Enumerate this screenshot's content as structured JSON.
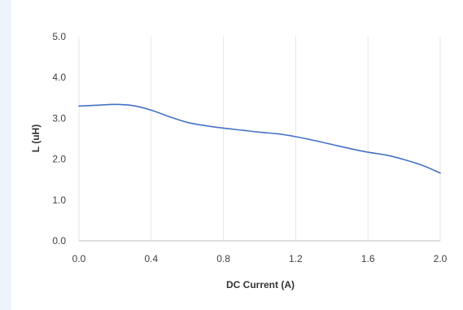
{
  "chart_data": {
    "type": "line",
    "title": "",
    "xlabel": "DC Current (A)",
    "ylabel": "L (uH)",
    "xlim": [
      0.0,
      2.0
    ],
    "ylim": [
      0.0,
      5.0
    ],
    "x_ticks": [
      "0.0",
      "0.4",
      "0.8",
      "1.2",
      "1.6",
      "2.0"
    ],
    "y_ticks": [
      "0.0",
      "1.0",
      "2.0",
      "3.0",
      "4.0",
      "5.0"
    ],
    "grid": "vertical",
    "legend": "none",
    "line_color": "#4472c4",
    "gridline_color": "#e6e6e6",
    "series": [
      {
        "x": [
          0.0,
          0.1,
          0.2,
          0.3,
          0.4,
          0.5,
          0.6,
          0.7,
          0.8,
          0.9,
          1.0,
          1.1,
          1.2,
          1.3,
          1.4,
          1.5,
          1.6,
          1.7,
          1.8,
          1.9,
          2.0
        ],
        "y": [
          3.3,
          3.32,
          3.34,
          3.31,
          3.2,
          3.04,
          2.9,
          2.82,
          2.76,
          2.71,
          2.66,
          2.62,
          2.55,
          2.46,
          2.36,
          2.26,
          2.17,
          2.1,
          1.99,
          1.85,
          1.66
        ]
      }
    ]
  }
}
